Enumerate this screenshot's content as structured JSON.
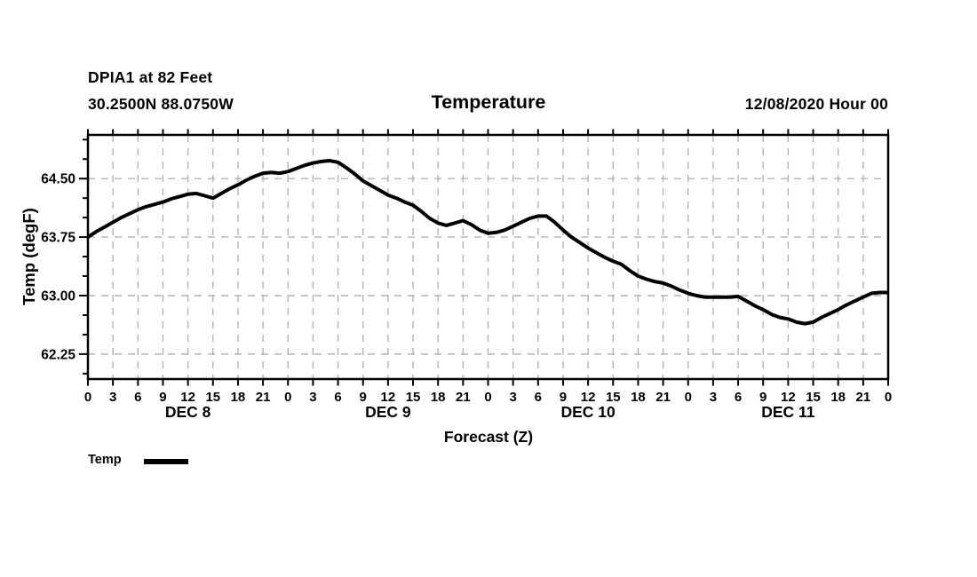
{
  "header": {
    "station_line": "DPIA1 at 82 Feet",
    "coords_line": "30.2500N 88.0750W",
    "title": "Temperature",
    "run_date": "12/08/2020 Hour 00"
  },
  "legend": {
    "label": "Temp",
    "swatch_color": "#000000"
  },
  "chart_data": {
    "type": "line",
    "title": "Temperature",
    "xlabel": "Forecast (Z)",
    "ylabel": "Temp (degF)",
    "grid_color": "#b4b4b4",
    "axis_color": "#000000",
    "xlim_hours": [
      0,
      96
    ],
    "ylim": [
      61.93,
      65.06
    ],
    "x_tick_step_hours": 3,
    "y_minor_step": 0.25,
    "y_tick_values": [
      64.5,
      63.75,
      63.0,
      62.25
    ],
    "y_tick_labels": [
      "64.50",
      "63.75",
      "63.00",
      "62.25"
    ],
    "x_tick_labels": [
      "0",
      "3",
      "6",
      "9",
      "12",
      "15",
      "18",
      "21",
      "0",
      "3",
      "6",
      "9",
      "12",
      "15",
      "18",
      "21",
      "0",
      "3",
      "6",
      "9",
      "12",
      "15",
      "18",
      "21",
      "0",
      "3",
      "6",
      "9",
      "12",
      "15",
      "18",
      "21",
      "0"
    ],
    "day_labels": [
      {
        "label": "DEC 8",
        "center_hour": 12
      },
      {
        "label": "DEC 9",
        "center_hour": 36
      },
      {
        "label": "DEC 10",
        "center_hour": 60
      },
      {
        "label": "DEC 11",
        "center_hour": 84
      }
    ],
    "x_hours": [
      0,
      1,
      2,
      3,
      4,
      5,
      6,
      7,
      8,
      9,
      10,
      11,
      12,
      13,
      14,
      15,
      16,
      17,
      18,
      19,
      20,
      21,
      22,
      23,
      24,
      25,
      26,
      27,
      28,
      29,
      30,
      31,
      32,
      33,
      34,
      35,
      36,
      37,
      38,
      39,
      40,
      41,
      42,
      43,
      44,
      45,
      46,
      47,
      48,
      49,
      50,
      51,
      52,
      53,
      54,
      55,
      56,
      57,
      58,
      59,
      60,
      61,
      62,
      63,
      64,
      65,
      66,
      67,
      68,
      69,
      70,
      71,
      72,
      73,
      74,
      75,
      76,
      77,
      78,
      79,
      80,
      81,
      82,
      83,
      84,
      85,
      86,
      87,
      88,
      89,
      90,
      91,
      92,
      93,
      94,
      95,
      96
    ],
    "series": [
      {
        "name": "Temp",
        "color": "#000000",
        "values": [
          63.75,
          63.82,
          63.88,
          63.94,
          64.0,
          64.05,
          64.1,
          64.14,
          64.17,
          64.2,
          64.24,
          64.27,
          64.3,
          64.31,
          64.28,
          64.25,
          64.31,
          64.37,
          64.42,
          64.48,
          64.53,
          64.57,
          64.58,
          64.57,
          64.59,
          64.63,
          64.67,
          64.7,
          64.72,
          64.73,
          64.71,
          64.64,
          64.56,
          64.47,
          64.41,
          64.35,
          64.29,
          64.25,
          64.2,
          64.16,
          64.08,
          63.99,
          63.93,
          63.9,
          63.93,
          63.96,
          63.91,
          63.84,
          63.8,
          63.81,
          63.84,
          63.89,
          63.94,
          63.99,
          64.02,
          64.02,
          63.94,
          63.84,
          63.75,
          63.68,
          63.61,
          63.55,
          63.49,
          63.44,
          63.4,
          63.32,
          63.25,
          63.21,
          63.18,
          63.16,
          63.12,
          63.07,
          63.03,
          63.0,
          62.98,
          62.98,
          62.98,
          62.98,
          62.99,
          62.93,
          62.87,
          62.82,
          62.76,
          62.72,
          62.7,
          62.66,
          62.64,
          62.66,
          62.72,
          62.77,
          62.82,
          62.88,
          62.93,
          62.98,
          63.03,
          63.04,
          63.04
        ]
      }
    ]
  }
}
